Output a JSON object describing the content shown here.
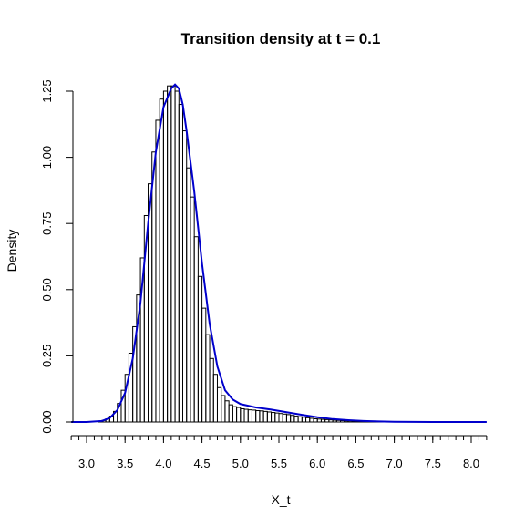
{
  "chart_data": {
    "type": "bar",
    "title": "Transition density at t = 0.1",
    "xlabel": "X_t",
    "ylabel": "Density",
    "xlim": [
      2.8,
      8.2
    ],
    "ylim": [
      0,
      1.28
    ],
    "x_ticks": [
      3.0,
      3.5,
      4.0,
      4.5,
      5.0,
      5.5,
      6.0,
      6.5,
      7.0,
      7.5,
      8.0
    ],
    "x_tick_labels": [
      "3.0",
      "3.5",
      "4.0",
      "4.5",
      "5.0",
      "5.5",
      "6.0",
      "6.5",
      "7.0",
      "7.5",
      "8.0"
    ],
    "x_minor_step": 0.1,
    "y_ticks": [
      0,
      0.25,
      0.5,
      0.75,
      1.0,
      1.25
    ],
    "y_tick_labels": [
      "0.00",
      "0.25",
      "0.50",
      "0.75",
      "1.00",
      "1.25"
    ],
    "histogram": {
      "bin_width": 0.05,
      "bins_start": [
        3.15,
        3.2,
        3.25,
        3.3,
        3.35,
        3.4,
        3.45,
        3.5,
        3.55,
        3.6,
        3.65,
        3.7,
        3.75,
        3.8,
        3.85,
        3.9,
        3.95,
        4.0,
        4.05,
        4.1,
        4.15,
        4.2,
        4.25,
        4.3,
        4.35,
        4.4,
        4.45,
        4.5,
        4.55,
        4.6,
        4.65,
        4.7,
        4.75,
        4.8,
        4.85,
        4.9,
        4.95,
        5.0,
        5.05,
        5.1,
        5.15,
        5.2,
        5.25,
        5.3,
        5.35,
        5.4,
        5.45,
        5.5,
        5.55,
        5.6,
        5.65,
        5.7,
        5.75,
        5.8,
        5.85,
        5.9,
        5.95,
        6.0,
        6.05,
        6.1,
        6.15,
        6.2,
        6.25,
        6.3,
        6.35,
        6.4,
        6.45,
        6.5,
        6.55,
        6.6,
        6.65,
        6.7,
        6.75,
        6.8,
        6.85,
        6.9,
        6.95,
        7.0,
        7.05
      ],
      "density": [
        0.003,
        0.006,
        0.012,
        0.022,
        0.04,
        0.07,
        0.12,
        0.18,
        0.26,
        0.36,
        0.48,
        0.62,
        0.78,
        0.9,
        1.02,
        1.14,
        1.22,
        1.25,
        1.27,
        1.27,
        1.25,
        1.2,
        1.1,
        0.96,
        0.85,
        0.7,
        0.55,
        0.43,
        0.33,
        0.24,
        0.18,
        0.13,
        0.1,
        0.08,
        0.065,
        0.058,
        0.055,
        0.05,
        0.048,
        0.046,
        0.045,
        0.043,
        0.042,
        0.04,
        0.038,
        0.036,
        0.034,
        0.032,
        0.03,
        0.028,
        0.025,
        0.022,
        0.02,
        0.018,
        0.016,
        0.014,
        0.012,
        0.011,
        0.01,
        0.009,
        0.008,
        0.007,
        0.006,
        0.005,
        0.004,
        0.004,
        0.003,
        0.003,
        0.002,
        0.002,
        0.002,
        0.001,
        0.001,
        0.001,
        0.001,
        0.001,
        0.001,
        0.001,
        0.001
      ]
    },
    "density_curve": {
      "color": "#0000cc",
      "x": [
        2.8,
        3.0,
        3.2,
        3.3,
        3.4,
        3.5,
        3.6,
        3.7,
        3.8,
        3.9,
        4.0,
        4.1,
        4.15,
        4.2,
        4.25,
        4.3,
        4.4,
        4.5,
        4.6,
        4.7,
        4.8,
        4.9,
        5.0,
        5.2,
        5.4,
        5.6,
        5.8,
        6.0,
        6.2,
        6.4,
        6.6,
        6.8,
        7.0,
        7.5,
        8.0,
        8.2
      ],
      "y": [
        0.0,
        0.0,
        0.004,
        0.015,
        0.045,
        0.11,
        0.24,
        0.45,
        0.75,
        1.02,
        1.19,
        1.26,
        1.275,
        1.26,
        1.2,
        1.1,
        0.87,
        0.6,
        0.37,
        0.21,
        0.12,
        0.085,
        0.068,
        0.055,
        0.047,
        0.037,
        0.027,
        0.018,
        0.011,
        0.007,
        0.004,
        0.002,
        0.001,
        0.0,
        0.0,
        0.0
      ]
    }
  }
}
